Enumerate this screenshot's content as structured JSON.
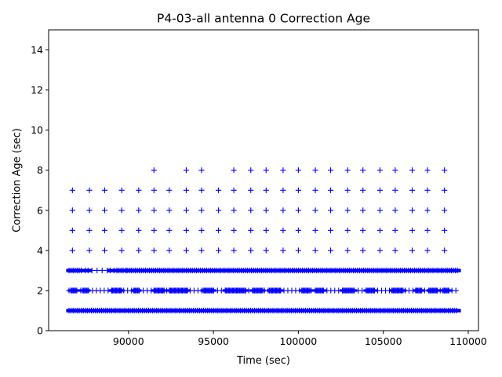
{
  "chart_data": {
    "type": "scatter",
    "title": "P4-03-all antenna 0 Correction Age",
    "xlabel": "Time (sec)",
    "ylabel": "Correction Age (sec)",
    "xlim": [
      85300,
      110600
    ],
    "ylim": [
      0,
      15
    ],
    "xticks": [
      90000,
      95000,
      100000,
      105000,
      110000
    ],
    "xtick_labels": [
      "90000",
      "95000",
      "100000",
      "105000",
      "110000"
    ],
    "yticks": [
      0,
      2,
      4,
      6,
      8,
      10,
      12,
      14
    ],
    "ytick_labels": [
      "0",
      "2",
      "4",
      "6",
      "8",
      "10",
      "12",
      "14"
    ],
    "grid": false,
    "marker": "+",
    "color": "#0000ff",
    "series": [
      {
        "rows": [
          {
            "y": 1,
            "dense": true,
            "start": 86500,
            "end": 109400
          },
          {
            "y": 2,
            "dense": false,
            "start": 86500,
            "end": 109300,
            "clusters": [
              [
                86600,
                87000
              ],
              [
                87300,
                87600
              ],
              [
                89000,
                89600
              ],
              [
                90300,
                90600
              ],
              [
                91500,
                92100
              ],
              [
                92400,
                93500
              ],
              [
                94400,
                95000
              ],
              [
                95700,
                96900
              ],
              [
                97300,
                97900
              ],
              [
                98300,
                99000
              ],
              [
                100200,
                100700
              ],
              [
                101000,
                101500
              ],
              [
                102600,
                103300
              ],
              [
                104000,
                104500
              ],
              [
                105500,
                106200
              ],
              [
                106900,
                107300
              ],
              [
                107700,
                108200
              ],
              [
                108500,
                108900
              ]
            ]
          },
          {
            "y": 3,
            "dense": true,
            "start": 86500,
            "end": 109400,
            "gaps": [
              [
                87300,
                87600
              ],
              [
                87700,
                88900
              ],
              [
                89000,
                89300
              ],
              [
                89700,
                89900
              ]
            ]
          },
          {
            "y": 4,
            "dense": false,
            "x": [
              86700,
              87700,
              88600,
              89600,
              90600,
              91500,
              92400,
              93400,
              94300,
              95300,
              96200,
              97200,
              98100,
              99100,
              100000,
              101000,
              101900,
              102900,
              103800,
              104800,
              105700,
              106700,
              107600,
              108600
            ]
          },
          {
            "y": 5,
            "dense": false,
            "x": [
              86700,
              87700,
              88600,
              89600,
              90600,
              91500,
              92400,
              93400,
              94300,
              95300,
              96200,
              97200,
              98100,
              99100,
              100000,
              101000,
              101900,
              102900,
              103800,
              104800,
              105700,
              106700,
              107600,
              108600
            ]
          },
          {
            "y": 6,
            "dense": false,
            "x": [
              86700,
              87700,
              88600,
              89600,
              90600,
              91500,
              92400,
              93400,
              94300,
              95300,
              96200,
              97200,
              98100,
              99100,
              100000,
              101000,
              101900,
              102900,
              103800,
              104800,
              105700,
              106700,
              107600,
              108600
            ]
          },
          {
            "y": 7,
            "dense": false,
            "x": [
              86700,
              87700,
              88600,
              89600,
              90600,
              91500,
              92400,
              93400,
              94300,
              95300,
              96200,
              97200,
              98100,
              99100,
              100000,
              101000,
              101900,
              102900,
              103800,
              104800,
              105700,
              106700,
              107600,
              108600
            ]
          },
          {
            "y": 8,
            "dense": false,
            "x": [
              91500,
              93400,
              94300,
              96200,
              97200,
              98100,
              99100,
              100000,
              101000,
              101900,
              102900,
              103800,
              104800,
              105700,
              106700,
              107600,
              108600
            ]
          }
        ]
      }
    ]
  }
}
